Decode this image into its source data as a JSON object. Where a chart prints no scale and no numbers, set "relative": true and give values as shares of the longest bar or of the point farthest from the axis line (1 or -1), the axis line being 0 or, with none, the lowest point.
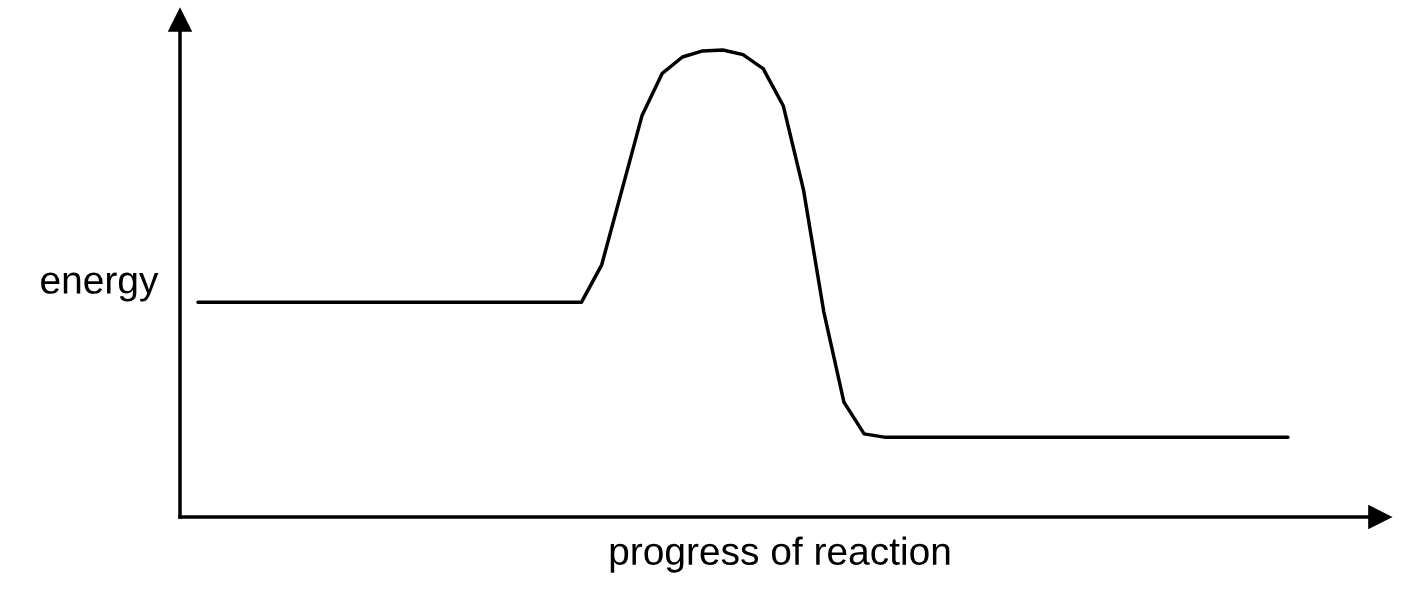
{
  "chart_data": {
    "type": "line",
    "relative": true,
    "xlabel": "progress of reaction",
    "ylabel": "energy",
    "categories": [
      null,
      null,
      null,
      null,
      null,
      null,
      null,
      null,
      null,
      null,
      null,
      null,
      null,
      null,
      null,
      null,
      null,
      null,
      null,
      null,
      null,
      null,
      null,
      null,
      null,
      null,
      null,
      null,
      null,
      null,
      null,
      null,
      null,
      null,
      null,
      null,
      null,
      null,
      null,
      null,
      null,
      null,
      null,
      null,
      null,
      null,
      null,
      null,
      null,
      null,
      null,
      null,
      null,
      null,
      null
    ],
    "series": [
      {
        "color": "#000000",
        "values": [
          0.46,
          0.46,
          0.46,
          0.46,
          0.46,
          0.46,
          0.46,
          0.46,
          0.46,
          0.46,
          0.46,
          0.46,
          0.46,
          0.46,
          0.46,
          0.46,
          0.46,
          0.46,
          0.46,
          0.46,
          0.54,
          0.7,
          0.86,
          0.95,
          0.985,
          0.998,
          1,
          0.99,
          0.96,
          0.88,
          0.7,
          0.44,
          0.246,
          0.178,
          0.171,
          0.171,
          0.171,
          0.171,
          0.171,
          0.171,
          0.171,
          0.171,
          0.171,
          0.171,
          0.171,
          0.171,
          0.171,
          0.171,
          0.171,
          0.171,
          0.171,
          0.171,
          0.171,
          0.171,
          0.171
        ]
      }
    ]
  }
}
